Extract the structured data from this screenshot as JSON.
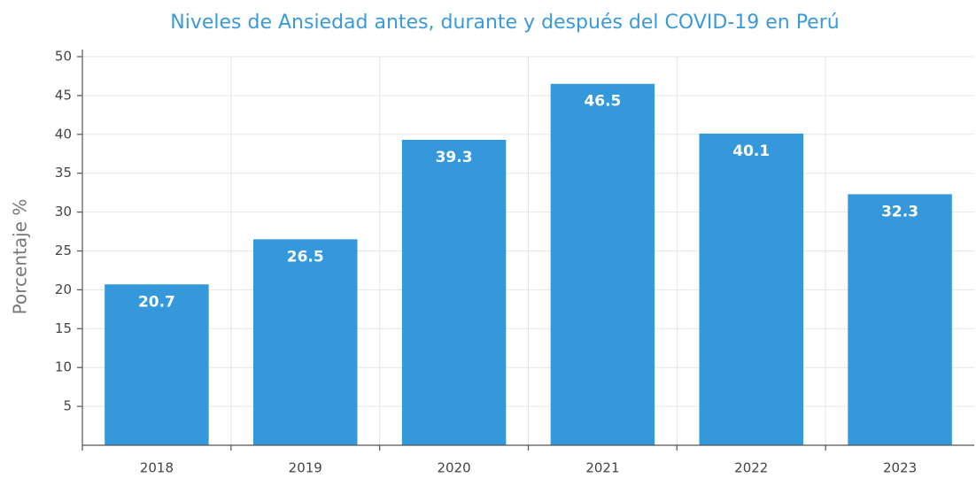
{
  "chart_data": {
    "type": "bar",
    "title": "Niveles de Ansiedad antes, durante y después del COVID-19 en Perú",
    "y_label": "Porcentaje %",
    "categories": [
      "2018",
      "2019",
      "2020",
      "2021",
      "2022",
      "2023"
    ],
    "values": [
      20.7,
      26.5,
      39.3,
      46.5,
      40.1,
      32.3
    ],
    "color": "#3498db",
    "ylim": [
      0,
      50
    ],
    "yticks": [
      5,
      10,
      15,
      20,
      25,
      30,
      35,
      40,
      45,
      50
    ],
    "grid": true
  }
}
